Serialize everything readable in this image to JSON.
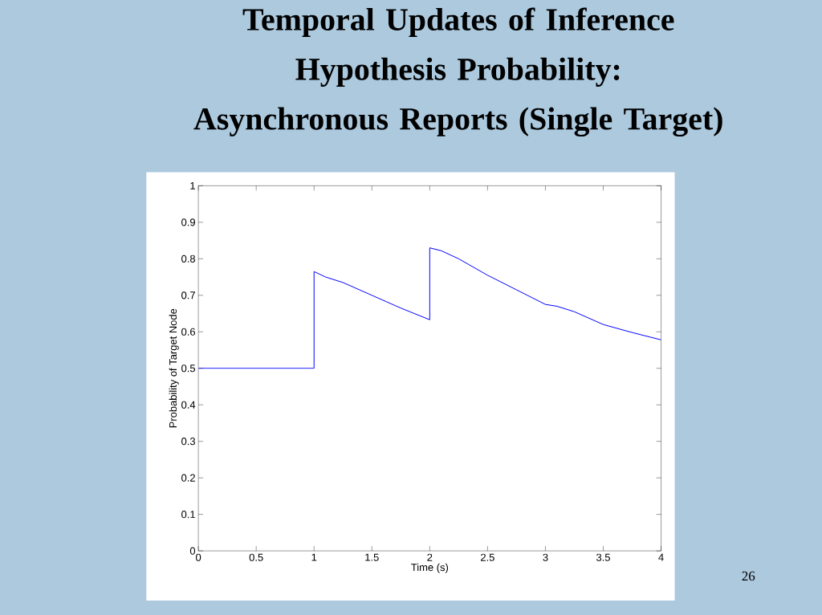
{
  "chart_data": {
    "type": "line",
    "title": "Temporal Updates of Inference Hypothesis Probability: Asynchronous Reports (Single Target)",
    "xlabel": "Time (s)",
    "ylabel": "Probability of Target Node",
    "x": [
      0,
      1,
      1,
      1.1,
      1.25,
      1.5,
      1.75,
      2,
      2,
      2.1,
      2.25,
      2.5,
      2.75,
      3,
      3.1,
      3.25,
      3.5,
      3.75,
      4
    ],
    "series": [
      {
        "color": "#0000ff",
        "values": [
          0.5,
          0.5,
          0.765,
          0.75,
          0.735,
          0.7,
          0.665,
          0.633,
          0.83,
          0.822,
          0.8,
          0.755,
          0.715,
          0.675,
          0.67,
          0.655,
          0.62,
          0.598,
          0.578
        ]
      }
    ],
    "xlim": [
      0,
      4
    ],
    "ylim": [
      0,
      1
    ],
    "xticks": [
      0,
      0.5,
      1,
      1.5,
      2,
      2.5,
      3,
      3.5,
      4
    ],
    "yticks": [
      0,
      0.1,
      0.2,
      0.3,
      0.4,
      0.5,
      0.6,
      0.7,
      0.8,
      0.9,
      1
    ],
    "annotations": [
      "26"
    ]
  }
}
